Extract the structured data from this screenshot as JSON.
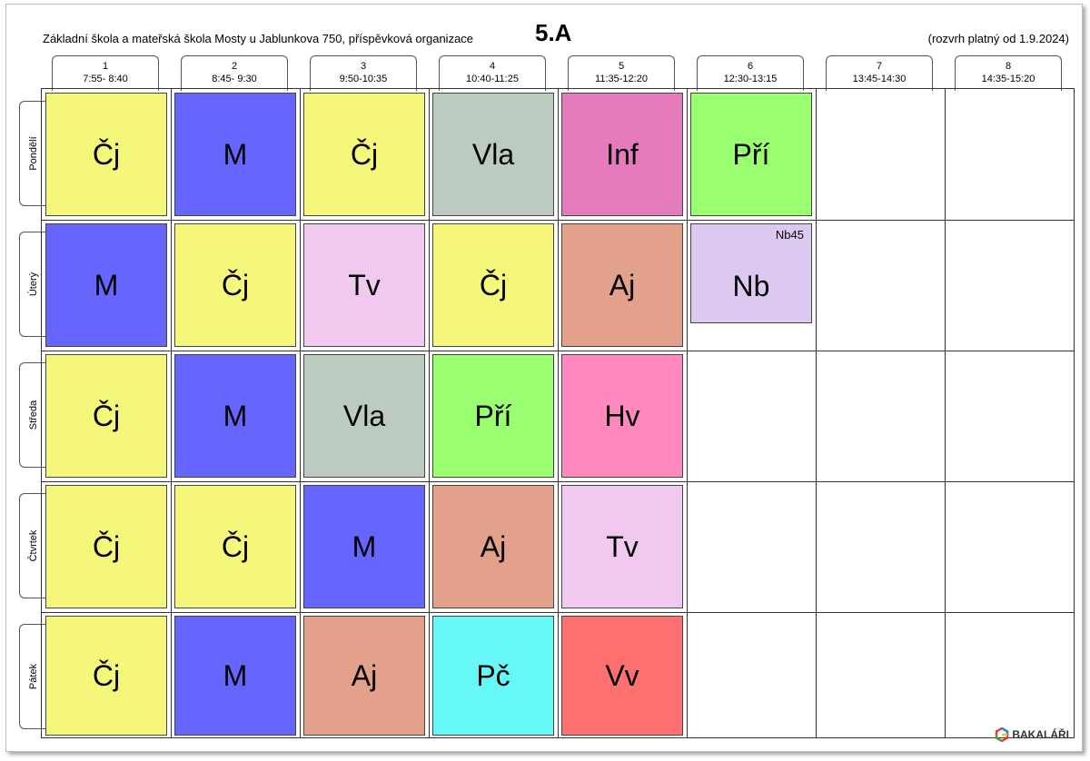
{
  "header": {
    "school": "Základní škola a mateřská škola Mosty u Jablunkova 750, příspěvková organizace",
    "class_name": "5.A",
    "validity": "(rozvrh platný od 1.9.2024)"
  },
  "periods": [
    {
      "num": "1",
      "time": "7:55- 8:40"
    },
    {
      "num": "2",
      "time": "8:45- 9:30"
    },
    {
      "num": "3",
      "time": "9:50-10:35"
    },
    {
      "num": "4",
      "time": "10:40-11:25"
    },
    {
      "num": "5",
      "time": "11:35-12:20"
    },
    {
      "num": "6",
      "time": "12:30-13:15"
    },
    {
      "num": "7",
      "time": "13:45-14:30"
    },
    {
      "num": "8",
      "time": "14:35-15:20"
    }
  ],
  "days": [
    "Pondělí",
    "Úterý",
    "Středa",
    "Čtvrtek",
    "Pátek"
  ],
  "subject_colors": {
    "Čj": "#f5f77a",
    "M": "#6666ff",
    "Vla": "#bccbbf",
    "Inf": "#e57bbd",
    "Pří": "#99ff70",
    "Tv": "#f0c8f0",
    "Aj": "#e3a18c",
    "Nb": "#dcc8f0",
    "Hv": "#ff88bf",
    "Pč": "#66f7f7",
    "Vv": "#ff7070"
  },
  "timetable": [
    [
      {
        "subject": "Čj"
      },
      {
        "subject": "M"
      },
      {
        "subject": "Čj"
      },
      {
        "subject": "Vla"
      },
      {
        "subject": "Inf"
      },
      {
        "subject": "Pří"
      }
    ],
    [
      {
        "subject": "M"
      },
      {
        "subject": "Čj"
      },
      {
        "subject": "Tv"
      },
      {
        "subject": "Čj"
      },
      {
        "subject": "Aj"
      },
      {
        "subject": "Nb",
        "room": "Nb45",
        "half": true
      }
    ],
    [
      {
        "subject": "Čj"
      },
      {
        "subject": "M"
      },
      {
        "subject": "Vla"
      },
      {
        "subject": "Pří"
      },
      {
        "subject": "Hv"
      }
    ],
    [
      {
        "subject": "Čj"
      },
      {
        "subject": "Čj"
      },
      {
        "subject": "M"
      },
      {
        "subject": "Aj"
      },
      {
        "subject": "Tv"
      }
    ],
    [
      {
        "subject": "Čj"
      },
      {
        "subject": "M"
      },
      {
        "subject": "Aj"
      },
      {
        "subject": "Pč"
      },
      {
        "subject": "Vv"
      }
    ]
  ],
  "logo": {
    "text": "BAKALÁŘI",
    "icon": "bakalari-logo-icon"
  }
}
